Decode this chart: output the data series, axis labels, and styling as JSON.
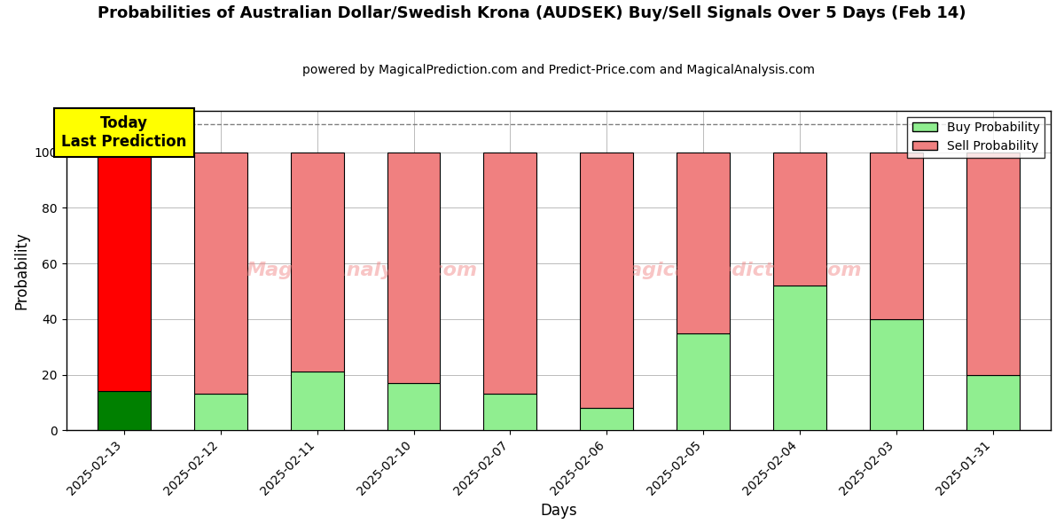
{
  "title": "Probabilities of Australian Dollar/Swedish Krona (AUDSEK) Buy/Sell Signals Over 5 Days (Feb 14)",
  "subtitle": "powered by MagicalPrediction.com and Predict-Price.com and MagicalAnalysis.com",
  "xlabel": "Days",
  "ylabel": "Probability",
  "dates": [
    "2025-02-13",
    "2025-02-12",
    "2025-02-11",
    "2025-02-10",
    "2025-02-07",
    "2025-02-06",
    "2025-02-05",
    "2025-02-04",
    "2025-02-03",
    "2025-01-31"
  ],
  "buy_values": [
    14,
    13,
    21,
    17,
    13,
    8,
    35,
    52,
    40,
    20
  ],
  "sell_values": [
    86,
    87,
    79,
    83,
    87,
    92,
    65,
    48,
    60,
    80
  ],
  "today_bar_index": 0,
  "today_buy_color": "#008000",
  "today_sell_color": "#ff0000",
  "normal_buy_color": "#90EE90",
  "normal_sell_color": "#F08080",
  "bar_edge_color": "#000000",
  "today_label_bg": "#ffff00",
  "today_label_text": "Today\nLast Prediction",
  "legend_buy_label": "Buy Probability",
  "legend_sell_label": "Sell Probability",
  "ylim": [
    0,
    115
  ],
  "dashed_line_y": 110,
  "watermark_lines": [
    "MagicalAnalysis.com",
    "MagicalPrediction.com"
  ],
  "background_color": "#ffffff",
  "grid_color": "#bbbbbb",
  "title_fontsize": 13,
  "subtitle_fontsize": 10,
  "bar_width": 0.55
}
